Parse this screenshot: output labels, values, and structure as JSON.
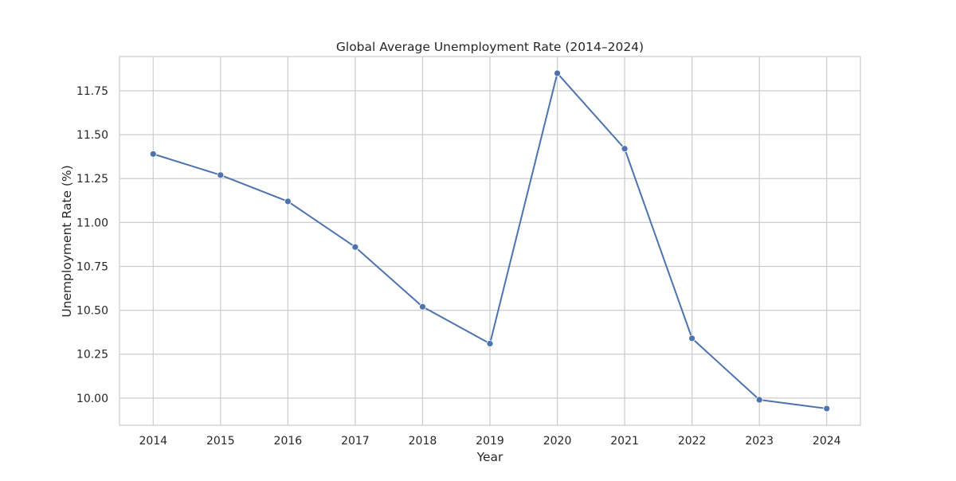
{
  "chart_data": {
    "type": "line",
    "title": "Global Average Unemployment Rate (2014–2024)",
    "xlabel": "Year",
    "ylabel": "Unemployment Rate (%)",
    "x": [
      "2014",
      "2015",
      "2016",
      "2017",
      "2018",
      "2019",
      "2020",
      "2021",
      "2022",
      "2023",
      "2024"
    ],
    "series": [
      {
        "name": "",
        "values": [
          11.39,
          11.27,
          11.12,
          10.86,
          10.52,
          10.31,
          11.85,
          11.42,
          10.34,
          9.99,
          9.94
        ]
      }
    ],
    "y_ticks": [
      "10.00",
      "10.25",
      "10.50",
      "10.75",
      "11.00",
      "11.25",
      "11.50",
      "11.75"
    ],
    "ylim": [
      9.845,
      11.945
    ],
    "grid": true,
    "legend": "none",
    "line_color": "#4c72b0",
    "grid_color": "#cccccc",
    "frame_color": "#cccccc"
  }
}
